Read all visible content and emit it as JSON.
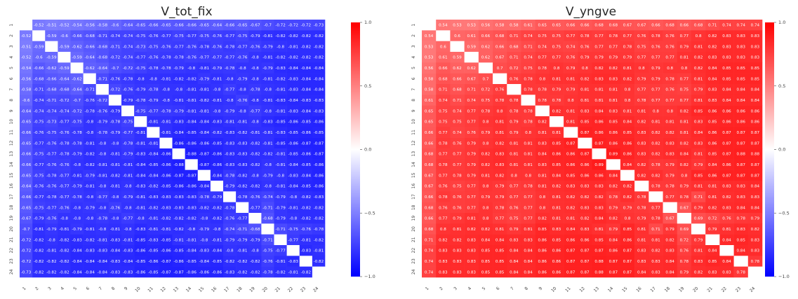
{
  "chart_data": [
    {
      "type": "heatmap",
      "title": "V_tot_fix",
      "labels": [
        "1",
        "2",
        "3",
        "4",
        "5",
        "6",
        "7",
        "8",
        "9",
        "10",
        "11",
        "12",
        "13",
        "14",
        "15",
        "16",
        "17",
        "18",
        "19",
        "20",
        "21",
        "22",
        "23",
        "24"
      ],
      "sign": -1,
      "upper_triangle": [
        [
          0.52,
          0.51,
          0.52,
          0.54,
          0.56,
          0.58,
          0.6,
          0.64,
          0.65,
          0.66,
          0.65,
          0.66,
          0.66,
          0.65,
          0.64,
          0.66,
          0.65,
          0.67,
          0.7,
          0.72,
          0.72,
          0.72,
          0.73
        ],
        [
          0.59,
          0.6,
          0.66,
          0.68,
          0.71,
          0.74,
          0.74,
          0.75,
          0.76,
          0.77,
          0.75,
          0.77,
          0.75,
          0.76,
          0.77,
          0.75,
          0.79,
          0.81,
          0.82,
          0.82,
          0.82
        ],
        [
          0.59,
          0.62,
          0.66,
          0.68,
          0.71,
          0.74,
          0.73,
          0.75,
          0.76,
          0.77,
          0.76,
          0.78,
          0.76,
          0.78,
          0.77,
          0.76,
          0.79,
          0.8,
          0.81,
          0.82,
          0.82
        ],
        [
          0.59,
          0.64,
          0.68,
          0.72,
          0.74,
          0.77,
          0.76,
          0.78,
          0.78,
          0.76,
          0.77,
          0.77,
          0.77,
          0.76,
          0.8,
          0.81,
          0.82,
          0.82,
          0.82
        ],
        [
          0.62,
          0.64,
          0.7,
          0.72,
          0.75,
          0.78,
          0.78,
          0.79,
          0.8,
          0.81,
          0.79,
          0.78,
          0.8,
          0.8,
          0.79,
          0.83,
          0.84,
          0.84,
          0.84
        ],
        [
          0.71,
          0.76,
          0.78,
          0.8,
          0.8,
          0.81,
          0.82,
          0.82,
          0.79,
          0.81,
          0.8,
          0.79,
          0.8,
          0.81,
          0.82,
          0.83,
          0.84,
          0.84
        ],
        [
          0.72,
          0.76,
          0.79,
          0.78,
          0.8,
          0.8,
          0.81,
          0.81,
          0.8,
          0.77,
          0.8,
          0.78,
          0.8,
          0.81,
          0.83,
          0.84,
          0.84
        ],
        [
          0.79,
          0.78,
          0.79,
          0.8,
          0.81,
          0.81,
          0.82,
          0.81,
          0.8,
          0.76,
          0.8,
          0.81,
          0.83,
          0.84,
          0.83
        ],
        [
          0.75,
          0.77,
          0.78,
          0.79,
          0.81,
          0.81,
          0.8,
          0.79,
          0.8,
          0.77,
          0.8,
          0.81,
          0.83,
          0.84,
          0.83
        ],
        [
          0.81,
          0.81,
          0.83,
          0.84,
          0.84,
          0.83,
          0.81,
          0.81,
          0.8,
          0.83,
          0.85,
          0.86,
          0.85,
          0.86,
          0.86
        ],
        [
          0.81,
          0.84,
          0.85,
          0.84,
          0.82,
          0.83,
          0.82,
          0.81,
          0.81,
          0.83,
          0.85,
          0.86,
          0.85,
          0.86
        ],
        [
          0.86,
          0.86,
          0.86,
          0.85,
          0.83,
          0.83,
          0.82,
          0.81,
          0.85,
          0.86,
          0.87,
          0.87,
          0.86
        ],
        [
          0.88,
          0.87,
          0.86,
          0.83,
          0.83,
          0.82,
          0.82,
          0.81,
          0.85,
          0.86,
          0.87,
          0.87,
          0.86
        ],
        [
          0.87,
          0.86,
          0.83,
          0.83,
          0.82,
          0.8,
          0.81,
          0.84,
          0.85,
          0.86,
          0.86,
          0.86
        ],
        [
          0.84,
          0.78,
          0.82,
          0.8,
          0.79,
          0.8,
          0.83,
          0.84,
          0.86,
          0.86,
          0.86
        ],
        [
          0.79,
          0.82,
          0.82,
          0.8,
          0.81,
          0.84,
          0.85,
          0.86,
          0.85
        ],
        [
          0.78,
          0.76,
          0.74,
          0.79,
          0.8,
          0.82,
          0.83,
          0.84
        ],
        [
          0.77,
          0.71,
          0.79,
          0.81,
          0.82,
          0.82,
          0.82
        ],
        [
          0.68,
          0.79,
          0.8,
          0.82,
          0.82,
          0.82
        ],
        [
          0.71,
          0.75,
          0.76,
          0.78,
          0.81
        ],
        [
          0.77,
          0.81,
          0.82,
          0.82
        ],
        [
          0.83,
          0.81,
          0.82
        ],
        [
          0.82,
          0.78
        ],
        [
          0.78
        ]
      ],
      "colorbar": {
        "min": -1.0,
        "max": 1.0,
        "ticks": [
          "1.0",
          "0.5",
          "0.0",
          "−0.5",
          "−1.0"
        ]
      }
    },
    {
      "type": "heatmap",
      "title": "V_yngve",
      "labels": [
        "1",
        "2",
        "3",
        "4",
        "5",
        "6",
        "7",
        "8",
        "9",
        "10",
        "11",
        "12",
        "13",
        "14",
        "15",
        "16",
        "17",
        "18",
        "19",
        "20",
        "21",
        "22",
        "23",
        "24"
      ],
      "sign": 1,
      "upper_triangle": [
        [
          0.54,
          0.53,
          0.53,
          0.56,
          0.58,
          0.58,
          0.61,
          0.65,
          0.65,
          0.66,
          0.66,
          0.68,
          0.68,
          0.67,
          0.67,
          0.66,
          0.68,
          0.66,
          0.68,
          0.71,
          0.74,
          0.74,
          0.74,
          0.75
        ],
        [
          0.6,
          0.61,
          0.66,
          0.68,
          0.71,
          0.74,
          0.75,
          0.75,
          0.77,
          0.78,
          0.77,
          0.78,
          0.77,
          0.76,
          0.78,
          0.76,
          0.77,
          0.8,
          0.82,
          0.83,
          0.83
        ],
        [
          0.59,
          0.62,
          0.66,
          0.68,
          0.71,
          0.74,
          0.75,
          0.74,
          0.76,
          0.77,
          0.77,
          0.78,
          0.75,
          0.76,
          0.76,
          0.79,
          0.81,
          0.82,
          0.83,
          0.83
        ],
        [
          0.62,
          0.67,
          0.71,
          0.74,
          0.77,
          0.77,
          0.76,
          0.79,
          0.79,
          0.79,
          0.79,
          0.77,
          0.77,
          0.77,
          0.81,
          0.82,
          0.83,
          0.83
        ],
        [
          0.7,
          0.72,
          0.75,
          0.78,
          0.8,
          0.79,
          0.8,
          0.82,
          0.82,
          0.81,
          0.8,
          0.79,
          0.8,
          0.8,
          0.82,
          0.84,
          0.85,
          0.85
        ],
        [
          0.76,
          0.78,
          0.8,
          0.81,
          0.81,
          0.82,
          0.83,
          0.83,
          0.82,
          0.79,
          0.79,
          0.78,
          0.77,
          0.81,
          0.84,
          0.85,
          0.85
        ],
        [
          0.78,
          0.78,
          0.79,
          0.79,
          0.81,
          0.81,
          0.81,
          0.8,
          0.77,
          0.77,
          0.76,
          0.75,
          0.79,
          0.83,
          0.84,
          0.84
        ],
        [
          0.78,
          0.78,
          0.8,
          0.81,
          0.81,
          0.81,
          0.8,
          0.78,
          0.77,
          0.77,
          0.77,
          0.81,
          0.83,
          0.84,
          0.84
        ],
        [
          0.82,
          0.81,
          0.83,
          0.84,
          0.83,
          0.81,
          0.81,
          0.8,
          0.8,
          0.82,
          0.85,
          0.86,
          0.86,
          0.86
        ],
        [
          0.81,
          0.85,
          0.86,
          0.85,
          0.84,
          0.82,
          0.81,
          0.81,
          0.81,
          0.83,
          0.85,
          0.86,
          0.86
        ],
        [
          0.87,
          0.86,
          0.86,
          0.85,
          0.83,
          0.82,
          0.82,
          0.81,
          0.84,
          0.86,
          0.87,
          0.87
        ],
        [
          0.87,
          0.86,
          0.86,
          0.83,
          0.82,
          0.83,
          0.82,
          0.83,
          0.86,
          0.87,
          0.87
        ],
        [
          0.89,
          0.86,
          0.83,
          0.82,
          0.83,
          0.84,
          0.81,
          0.85,
          0.87,
          0.88,
          0.88
        ],
        [
          0.84,
          0.82,
          0.78,
          0.79,
          0.82,
          0.79,
          0.84,
          0.86,
          0.87,
          0.87
        ],
        [
          0.82,
          0.82,
          0.79,
          0.8,
          0.85,
          0.86,
          0.87,
          0.87
        ],
        [
          0.78,
          0.78,
          0.79,
          0.81,
          0.81,
          0.83,
          0.83,
          0.84
        ],
        [
          0.77,
          0.78,
          0.71,
          0.81,
          0.82,
          0.83,
          0.83
        ],
        [
          0.67,
          0.79,
          0.82,
          0.83,
          0.84,
          0.84
        ],
        [
          0.69,
          0.72,
          0.76,
          0.78,
          0.79
        ],
        [
          0.79,
          0.81,
          0.83,
          0.82
        ],
        [
          0.84,
          0.85,
          0.83
        ],
        [
          0.84,
          0.83
        ],
        [
          0.78
        ],
        []
      ],
      "colorbar": {
        "min": -1.0,
        "max": 1.0,
        "ticks": [
          "1.0",
          "0.5",
          "0.0",
          "−0.5",
          "−1.0"
        ]
      }
    }
  ]
}
